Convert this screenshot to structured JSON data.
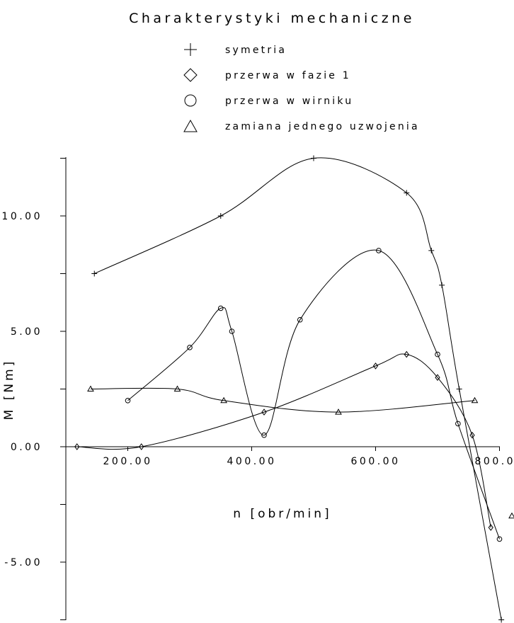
{
  "chart_data": {
    "type": "line",
    "title": "Charakterystyki mechaniczne",
    "xlabel": "n [obr/min]",
    "ylabel": "M [Nm]",
    "xlim": [
      95,
      806
    ],
    "ylim": [
      -7.5,
      12.6
    ],
    "x_ticks": [
      {
        "value": 200,
        "label": "200.00"
      },
      {
        "value": 400,
        "label": "400.00"
      },
      {
        "value": 600,
        "label": "600.00"
      },
      {
        "value": 800,
        "label": "800.00"
      }
    ],
    "y_ticks": [
      {
        "value": 10,
        "label": "10.00"
      },
      {
        "value": 5,
        "label": "5.00"
      },
      {
        "value": 0,
        "label": "0.00"
      },
      {
        "value": -5,
        "label": "-5.00"
      }
    ],
    "minor_y_ticks": [
      12.5,
      7.5,
      2.5,
      -2.5,
      -7.5
    ],
    "grid": false,
    "legend_position": "top-center",
    "series": [
      {
        "name": "symetria",
        "marker": "plus",
        "points": [
          [
            146,
            7.5
          ],
          [
            350,
            10.0
          ],
          [
            500,
            12.5
          ],
          [
            650,
            11.0
          ],
          [
            690,
            8.5
          ],
          [
            707,
            7.0
          ],
          [
            735,
            2.5
          ],
          [
            803,
            -7.5
          ]
        ]
      },
      {
        "name": "przerwa w fazie 1",
        "marker": "diamond",
        "points": [
          [
            118,
            0.0
          ],
          [
            222,
            0.0
          ],
          [
            420,
            1.5
          ],
          [
            600,
            3.5
          ],
          [
            650,
            4.0
          ],
          [
            700,
            3.0
          ],
          [
            756,
            0.5
          ],
          [
            786,
            -3.5
          ]
        ]
      },
      {
        "name": "przerwa w wirniku",
        "marker": "circle",
        "points": [
          [
            200,
            2.0
          ],
          [
            300,
            4.3
          ],
          [
            350,
            6.0
          ],
          [
            368,
            5.0
          ],
          [
            420,
            0.5
          ],
          [
            478,
            5.5
          ],
          [
            605,
            8.5
          ],
          [
            700,
            4.0
          ],
          [
            733,
            1.0
          ],
          [
            800,
            -4.0
          ]
        ]
      },
      {
        "name": "zamiana jednego uzwojenia",
        "marker": "triangle",
        "points": [
          [
            140,
            2.5
          ],
          [
            280,
            2.5
          ],
          [
            355,
            2.0
          ],
          [
            540,
            1.5
          ],
          [
            760,
            2.0
          ],
          [
            820,
            -3.0
          ]
        ]
      }
    ]
  }
}
